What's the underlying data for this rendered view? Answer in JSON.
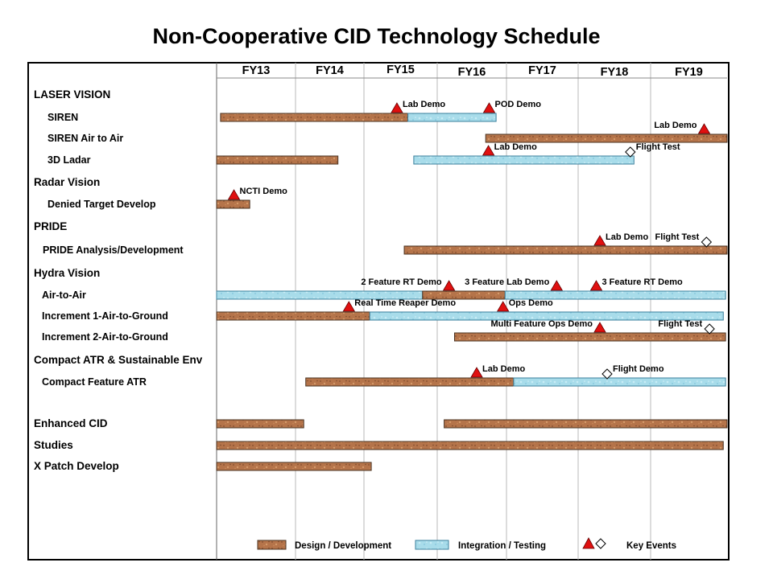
{
  "title": "Non-Cooperative CID Technology Schedule",
  "chart_data": {
    "type": "gantt",
    "title": "Non-Cooperative CID Technology Schedule",
    "periods": [
      "FY13",
      "FY14",
      "FY15",
      "FY16",
      "FY17",
      "FY18",
      "FY19"
    ],
    "x_range": [
      0,
      7
    ],
    "colors": {
      "design": "#b5744a",
      "test": "#a8dcea",
      "milestone": "#e01010"
    },
    "rows": [
      {
        "label": "LASER VISION",
        "group": true,
        "bars": [],
        "events": []
      },
      {
        "label": "SIREN",
        "group": false,
        "bars": [
          {
            "phase": "design",
            "start": 0.05,
            "end": 2.6
          },
          {
            "phase": "test",
            "start": 2.6,
            "end": 3.85
          }
        ],
        "events": [
          {
            "label": "Lab Demo",
            "kind": "milestone",
            "at": 2.45,
            "label_side": "right"
          },
          {
            "label": "POD Demo",
            "kind": "milestone",
            "at": 3.75,
            "label_side": "right"
          }
        ]
      },
      {
        "label": "SIREN Air to Air",
        "group": false,
        "bars": [
          {
            "phase": "design",
            "start": 3.7,
            "end": 7.0
          }
        ],
        "events": [
          {
            "label": "Lab Demo",
            "kind": "milestone",
            "at": 6.7,
            "label_side": "left"
          }
        ]
      },
      {
        "label": "3D Ladar",
        "group": false,
        "bars": [
          {
            "phase": "design",
            "start": 0.0,
            "end": 1.62
          },
          {
            "phase": "test",
            "start": 2.68,
            "end": 5.77
          }
        ],
        "events": [
          {
            "label": "Lab Demo",
            "kind": "milestone",
            "at": 3.74,
            "label_side": "right"
          },
          {
            "label": "Flight Test",
            "kind": "planned",
            "at": 5.72,
            "label_side": "right"
          }
        ]
      },
      {
        "label": "Radar Vision",
        "group": true,
        "bars": [],
        "events": []
      },
      {
        "label": "Denied Target Develop",
        "group": false,
        "bars": [
          {
            "phase": "design",
            "start": 0.0,
            "end": 0.42
          }
        ],
        "events": [
          {
            "label": "NCTI Demo",
            "kind": "milestone",
            "at": 0.22,
            "label_side": "right"
          }
        ]
      },
      {
        "label": "PRIDE",
        "group": true,
        "bars": [],
        "events": []
      },
      {
        "label": "PRIDE Analysis/Development",
        "group": false,
        "bars": [
          {
            "phase": "design",
            "start": 2.55,
            "end": 7.0
          }
        ],
        "events": [
          {
            "label": "Lab Demo",
            "kind": "milestone",
            "at": 5.3,
            "label_side": "right"
          },
          {
            "label": "Flight Test",
            "kind": "planned",
            "at": 6.73,
            "label_side": "left"
          }
        ]
      },
      {
        "label": "Hydra Vision",
        "group": true,
        "bars": [],
        "events": []
      },
      {
        "label": "Air-to-Air",
        "group": false,
        "bars": [
          {
            "phase": "test",
            "start": 0.0,
            "end": 2.8
          },
          {
            "phase": "design",
            "start": 2.8,
            "end": 3.98
          },
          {
            "phase": "test",
            "start": 3.98,
            "end": 6.98
          }
        ],
        "events": [
          {
            "label": "2 Feature RT Demo",
            "kind": "milestone",
            "at": 3.17,
            "label_side": "left"
          },
          {
            "label": "3 Feature Lab Demo",
            "kind": "milestone",
            "at": 4.7,
            "label_side": "left"
          },
          {
            "label": "3 Feature RT Demo",
            "kind": "milestone",
            "at": 5.25,
            "label_side": "right"
          }
        ]
      },
      {
        "label": "Increment 1-Air-to-Ground",
        "group": false,
        "bars": [
          {
            "phase": "design",
            "start": 0.0,
            "end": 2.08
          },
          {
            "phase": "test",
            "start": 2.08,
            "end": 6.95
          }
        ],
        "events": [
          {
            "label": "Real Time Reaper Demo",
            "kind": "milestone",
            "at": 1.78,
            "label_side": "right"
          },
          {
            "label": "Ops Demo",
            "kind": "milestone",
            "at": 3.95,
            "label_side": "right"
          }
        ]
      },
      {
        "label": "Increment 2-Air-to-Ground",
        "group": false,
        "bars": [
          {
            "phase": "design",
            "start": 3.25,
            "end": 6.98
          }
        ],
        "events": [
          {
            "label": "Multi Feature Ops Demo",
            "kind": "milestone",
            "at": 5.3,
            "label_side": "left"
          },
          {
            "label": "Flight Test",
            "kind": "planned",
            "at": 6.77,
            "label_side": "left"
          }
        ]
      },
      {
        "label": "Compact ATR & Sustainable Env",
        "group": true,
        "bars": [],
        "events": []
      },
      {
        "label": "Compact Feature ATR",
        "group": false,
        "bars": [
          {
            "phase": "design",
            "start": 1.15,
            "end": 4.1
          },
          {
            "phase": "test",
            "start": 4.1,
            "end": 6.98
          }
        ],
        "events": [
          {
            "label": "Lab Demo",
            "kind": "milestone",
            "at": 3.57,
            "label_side": "right"
          },
          {
            "label": "Flight Demo",
            "kind": "planned",
            "at": 5.4,
            "label_side": "right"
          }
        ]
      },
      {
        "label": "Enhanced CID",
        "group": true,
        "bars": [
          {
            "phase": "design",
            "start": 0.0,
            "end": 1.12
          },
          {
            "phase": "design",
            "start": 3.1,
            "end": 7.0
          }
        ],
        "events": []
      },
      {
        "label": "Studies",
        "group": true,
        "bars": [
          {
            "phase": "design",
            "start": 0.0,
            "end": 6.95
          }
        ],
        "events": []
      },
      {
        "label": "X Patch Develop",
        "group": true,
        "bars": [
          {
            "phase": "design",
            "start": 0.0,
            "end": 2.1
          }
        ],
        "events": []
      }
    ],
    "legend": [
      {
        "label": "Design / Development",
        "kind": "design"
      },
      {
        "label": "Integration / Testing",
        "kind": "test"
      },
      {
        "label": "Key Events",
        "kind": "events"
      }
    ]
  }
}
